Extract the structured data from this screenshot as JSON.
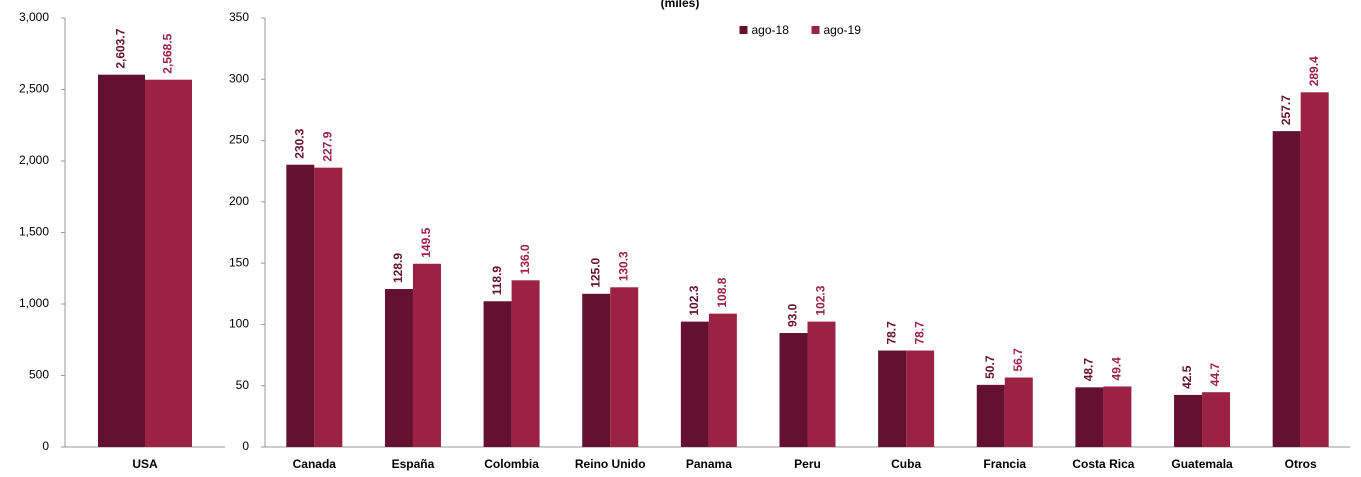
{
  "chart_data": [
    {
      "type": "bar",
      "categories": [
        "USA"
      ],
      "series": [
        {
          "name": "ago-18",
          "color": "#63112f",
          "values": [
            2603.7
          ],
          "value_labels": [
            "2,603.7"
          ]
        },
        {
          "name": "ago-19",
          "color": "#9b2245",
          "values": [
            2568.5
          ],
          "value_labels": [
            "2,568.5"
          ]
        }
      ],
      "ylim": [
        0,
        3000
      ],
      "yticks": [
        0,
        500,
        {
          "value": 1000,
          "label": "1,000"
        },
        {
          "value": 1500,
          "label": "1,500"
        },
        {
          "value": 2000,
          "label": "2,000"
        },
        {
          "value": 2500,
          "label": "2,500"
        },
        {
          "value": 3000,
          "label": "3,000"
        }
      ],
      "grid": false
    },
    {
      "type": "bar",
      "subtitle": "(miles)",
      "categories": [
        "Canada",
        "España",
        "Colombia",
        "Reino Unido",
        "Panama",
        "Peru",
        "Cuba",
        "Francia",
        "Costa Rica",
        "Guatemala",
        "Otros"
      ],
      "series": [
        {
          "name": "ago-18",
          "color": "#63112f",
          "values": [
            230.3,
            128.9,
            118.9,
            125.0,
            102.3,
            93.0,
            78.7,
            50.7,
            48.7,
            42.5,
            257.7
          ],
          "value_labels": [
            "230.3",
            "128.9",
            "118.9",
            "125.0",
            "102.3",
            "93.0",
            "78.7",
            "50.7",
            "48.7",
            "42.5",
            "257.7"
          ]
        },
        {
          "name": "ago-19",
          "color": "#9b2245",
          "values": [
            227.9,
            149.5,
            136.0,
            130.3,
            108.8,
            102.3,
            78.7,
            56.7,
            49.4,
            44.7,
            289.4
          ],
          "value_labels": [
            "227.9",
            "149.5",
            "136.0",
            "130.3",
            "108.8",
            "102.3",
            "78.7",
            "56.7",
            "49.4",
            "44.7",
            "289.4"
          ]
        }
      ],
      "ylim": [
        0,
        350
      ],
      "yticks": [
        0,
        50,
        100,
        150,
        200,
        250,
        300,
        350
      ],
      "legend": "top",
      "grid": false
    }
  ]
}
